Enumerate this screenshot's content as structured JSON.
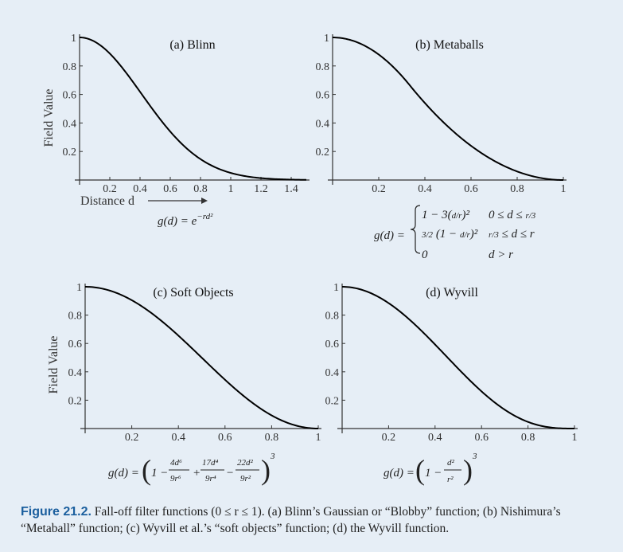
{
  "caption": {
    "label": "Figure 21.2.",
    "text": "Fall-off filter functions (0 ≤ r ≤ 1). (a) Blinn’s Gaussian or “Blobby” function; (b) Nishimura’s “Metaball” function; (c) Wyvill et al.’s “soft objects” function; (d) the Wyvill function."
  },
  "chart_data": [
    {
      "type": "line",
      "title": "(a) Blinn",
      "ylabel": "Field Value",
      "xlabel": "Distance d",
      "xlim": [
        0,
        1.5
      ],
      "ylim": [
        0,
        1
      ],
      "xticks": [
        "0.2",
        "0.4",
        "0.6",
        "0.8",
        "1",
        "1.2",
        "1.4"
      ],
      "yticks": [
        "0.2",
        "0.4",
        "0.6",
        "0.8",
        "1"
      ],
      "function": "blinn",
      "formula": "g(d) = e^(-rd²)",
      "series": [
        {
          "x": [
            0,
            0.1,
            0.2,
            0.3,
            0.4,
            0.5,
            0.6,
            0.7,
            0.8,
            0.9,
            1.0,
            1.1,
            1.2,
            1.3,
            1.4,
            1.5
          ],
          "y": [
            1.0,
            0.961,
            0.852,
            0.698,
            0.527,
            0.368,
            0.237,
            0.141,
            0.077,
            0.039,
            0.018,
            0.008,
            0.003,
            0.001,
            0.0004,
            0.0001
          ]
        }
      ]
    },
    {
      "type": "line",
      "title": "(b) Metaballs",
      "ylabel": "",
      "xlabel": "",
      "xlim": [
        0,
        1
      ],
      "ylim": [
        0,
        1
      ],
      "xticks": [
        "0.2",
        "0.4",
        "0.6",
        "0.8",
        "1"
      ],
      "yticks": [
        "0.2",
        "0.4",
        "0.6",
        "0.8",
        "1"
      ],
      "function": "metaball",
      "formula": "g(d) = { 1 − 3(d/r)²  0 ≤ d ≤ r/3 ; 3/2 (1 − d/r)²  r/3 ≤ d ≤ r ; 0  d > r }",
      "series": [
        {
          "x": [
            0,
            0.1,
            0.2,
            0.3333,
            0.4,
            0.5,
            0.6,
            0.7,
            0.8,
            0.9,
            1.0
          ],
          "y": [
            1.0,
            0.97,
            0.88,
            0.667,
            0.54,
            0.375,
            0.24,
            0.135,
            0.06,
            0.015,
            0.0
          ]
        }
      ]
    },
    {
      "type": "line",
      "title": "(c) Soft Objects",
      "ylabel": "Field Value",
      "xlabel": "",
      "xlim": [
        0,
        1
      ],
      "ylim": [
        0,
        1
      ],
      "xticks": [
        "0.2",
        "0.4",
        "0.6",
        "0.8",
        "1"
      ],
      "yticks": [
        "0.2",
        "0.4",
        "0.6",
        "0.8",
        "1"
      ],
      "function": "soft",
      "formula": "g(d) = (1 − 4d⁶/9r⁶ + 17d⁴/9r⁴ − 22d²/9r²)³",
      "series": [
        {
          "x": [
            0,
            0.1,
            0.2,
            0.3,
            0.4,
            0.5,
            0.6,
            0.7,
            0.8,
            0.9,
            1.0
          ],
          "y": [
            1.0,
            0.977,
            0.911,
            0.81,
            0.686,
            0.551,
            0.416,
            0.286,
            0.164,
            0.063,
            0.0
          ]
        }
      ]
    },
    {
      "type": "line",
      "title": "(d) Wyvill",
      "ylabel": "",
      "xlabel": "",
      "xlim": [
        0,
        1
      ],
      "ylim": [
        0,
        1
      ],
      "xticks": [
        "0.2",
        "0.4",
        "0.6",
        "0.8",
        "1"
      ],
      "yticks": [
        "0.2",
        "0.4",
        "0.6",
        "0.8",
        "1"
      ],
      "function": "wyvill",
      "formula": "g(d) = (1 − d²/r²)³",
      "series": [
        {
          "x": [
            0,
            0.1,
            0.2,
            0.3,
            0.4,
            0.5,
            0.6,
            0.7,
            0.8,
            0.9,
            1.0
          ],
          "y": [
            1.0,
            0.97,
            0.885,
            0.754,
            0.593,
            0.422,
            0.262,
            0.133,
            0.047,
            0.007,
            0.0
          ]
        }
      ]
    }
  ]
}
